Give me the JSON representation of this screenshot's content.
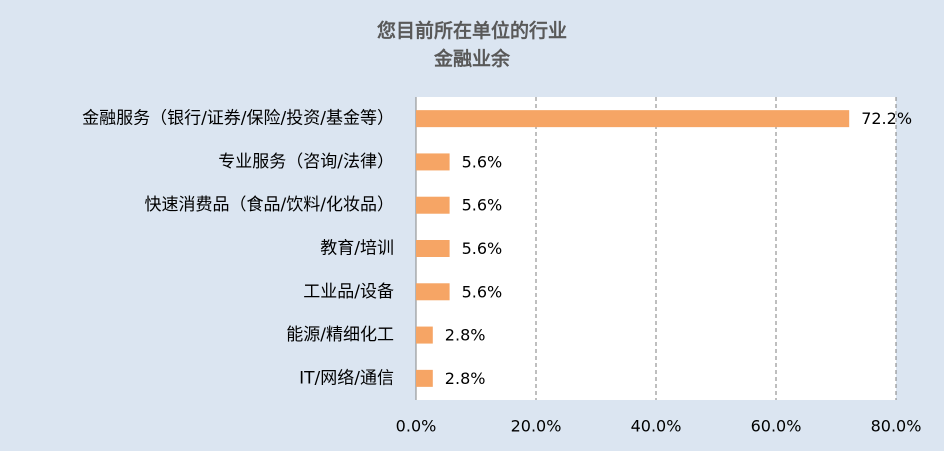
{
  "chart_data": {
    "type": "bar",
    "orientation": "horizontal",
    "title": "您目前所在单位的行业",
    "subtitle": "金融业余",
    "categories": [
      "金融服务（银行/证券/保险/投资/基金等）",
      "专业服务（咨询/法律）",
      "快速消费品（食品/饮料/化妆品）",
      "教育/培训",
      "工业品/设备",
      "能源/精细化工",
      "IT/网络/通信"
    ],
    "values": [
      72.2,
      5.6,
      5.6,
      5.6,
      5.6,
      2.8,
      2.8
    ],
    "data_labels": [
      "72.2%",
      "5.6%",
      "5.6%",
      "5.6%",
      "5.6%",
      "2.8%",
      "2.8%"
    ],
    "xlim": [
      0,
      80
    ],
    "x_ticks": [
      0,
      20,
      40,
      60,
      80
    ],
    "x_tick_labels": [
      "0.0%",
      "20.0%",
      "40.0%",
      "60.0%",
      "80.0%"
    ],
    "grid": "vertical dashed",
    "legend": "none",
    "colors": {
      "bar": "#f6a565",
      "background": "#dbe5f1",
      "plot_background": "#ffffff",
      "text": "#000000",
      "title": "#595959",
      "grid": "#7f7f7f"
    }
  }
}
